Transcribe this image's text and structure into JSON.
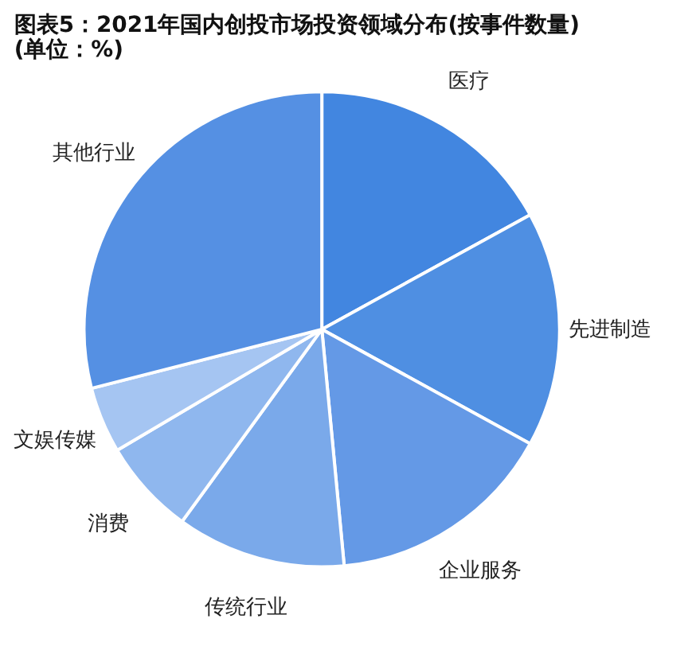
{
  "chart_data": {
    "type": "pie",
    "title": "图表5：2021年国内创投市场投资领域分布(按事件数量)(单位：%)",
    "categories": [
      "医疗",
      "先进制造",
      "企业服务",
      "传统行业",
      "消费",
      "文娱传媒",
      "其他行业"
    ],
    "values": [
      17,
      16,
      15.5,
      11.5,
      6.5,
      4.5,
      29
    ],
    "colors": [
      "#4286e0",
      "#4f8fe2",
      "#6499e6",
      "#7aa9ea",
      "#8fb7ee",
      "#a5c5f2",
      "#5590e3"
    ],
    "legend": false
  }
}
